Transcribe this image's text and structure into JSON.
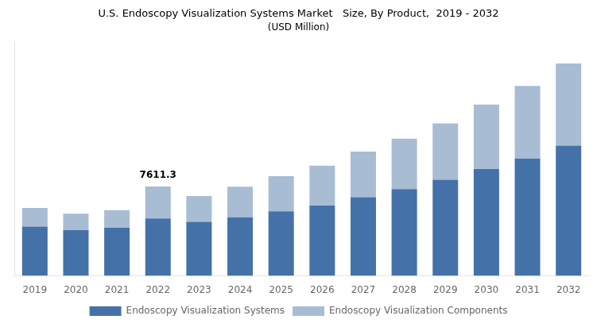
{
  "chart_data": {
    "type": "bar",
    "title": "U.S. Endoscopy Visualization Systems Market   Size, By Product,  2019 - 2032",
    "subtitle": "(USD Million)",
    "categories": [
      "2019",
      "2020",
      "2021",
      "2022",
      "2023",
      "2024",
      "2025",
      "2026",
      "2027",
      "2028",
      "2029",
      "2030",
      "2031",
      "2032"
    ],
    "series": [
      {
        "name": "Endoscopy Visualization Systems",
        "color": "#4472a8",
        "values": [
          4200,
          3900,
          4100,
          4900,
          4600,
          5000,
          5500,
          6000,
          6700,
          7400,
          8200,
          9100,
          10000,
          11100
        ]
      },
      {
        "name": "Endoscopy Visualization Components",
        "color": "#a8bcd4",
        "values": [
          1600,
          1400,
          1500,
          2711,
          2200,
          2600,
          3000,
          3400,
          3900,
          4300,
          4800,
          5500,
          6200,
          7000
        ]
      }
    ],
    "stacked": true,
    "ylim": [
      0,
      20000
    ],
    "yticks": [],
    "tick_labels": "x",
    "grid": false,
    "legend": "bottom",
    "annotations": [
      {
        "text": "7611.3",
        "category": "2022"
      }
    ]
  }
}
